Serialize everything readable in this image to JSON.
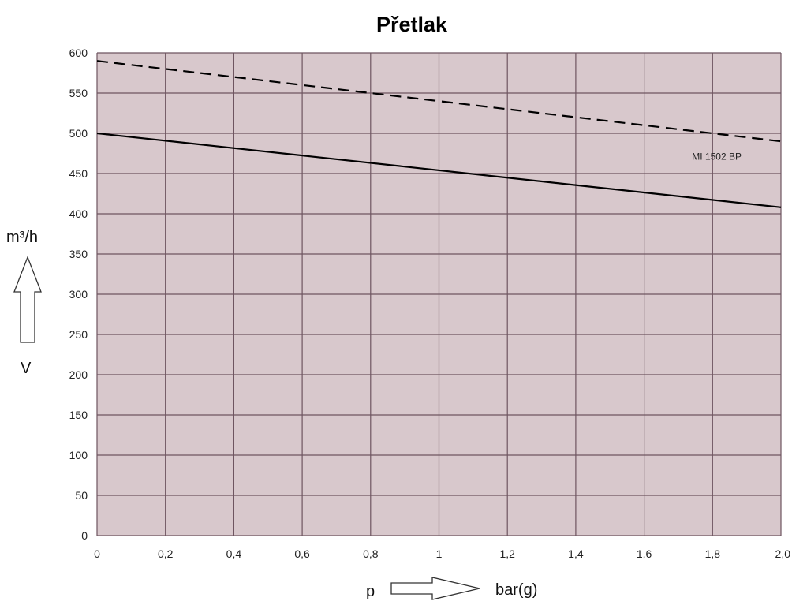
{
  "chart_data": {
    "type": "line",
    "title": "Přetlak",
    "x_ticks": [
      "0",
      "0,2",
      "0,4",
      "0,6",
      "0,8",
      "1",
      "1,2",
      "1,4",
      "1,6",
      "1,8",
      "2,0"
    ],
    "y_ticks": [
      "0",
      "50",
      "100",
      "150",
      "200",
      "250",
      "300",
      "350",
      "400",
      "450",
      "500",
      "550",
      "600"
    ],
    "xlim": [
      0,
      2.0
    ],
    "ylim": [
      0,
      600
    ],
    "grid": true,
    "x_axis": {
      "symbol": "p",
      "unit": "bar(g)"
    },
    "y_axis": {
      "unit": "m³/h",
      "symbol": "V"
    },
    "series": [
      {
        "style": "dashed",
        "x": [
          0,
          2.0
        ],
        "y": [
          590,
          490
        ]
      },
      {
        "name": "MI 1502 BP",
        "style": "solid",
        "x": [
          0,
          2.0
        ],
        "y": [
          500,
          408
        ]
      }
    ],
    "colors": {
      "plot_background": "#d8c8cc",
      "grid": "#6e5560",
      "line": "#000000"
    }
  }
}
